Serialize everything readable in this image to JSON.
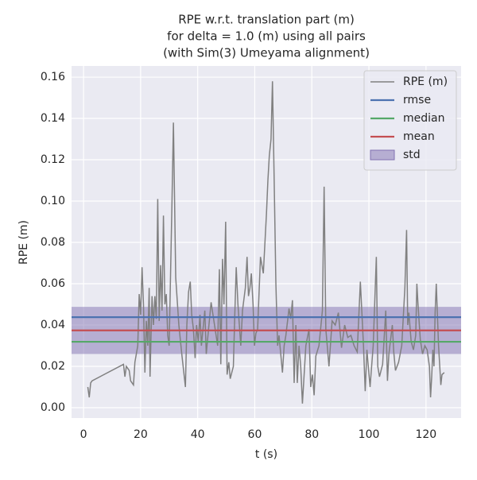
{
  "chart_data": {
    "type": "line",
    "title": [
      "RPE w.r.t. translation part (m)",
      "for delta = 1.0 (m) using all pairs",
      "(with Sim(3) Umeyama alignment)"
    ],
    "xlabel": "t (s)",
    "ylabel": "RPE (m)",
    "xlim": [
      -4.2,
      132.3
    ],
    "ylim": [
      -0.005,
      0.1654
    ],
    "xticks": [
      0,
      20,
      40,
      60,
      80,
      100,
      120
    ],
    "yticks": [
      {
        "value": 0,
        "label": "0.00"
      },
      {
        "value": 0.02,
        "label": "0.02"
      },
      {
        "value": 0.04,
        "label": "0.04"
      },
      {
        "value": 0.06,
        "label": "0.06"
      },
      {
        "value": 0.08,
        "label": "0.08"
      },
      {
        "value": 0.1,
        "label": "0.10"
      },
      {
        "value": 0.12,
        "label": "0.12"
      },
      {
        "value": 0.14,
        "label": "0.14"
      },
      {
        "value": 0.16,
        "label": "0.16"
      }
    ],
    "grid": true,
    "legend": "upper right",
    "series": [
      {
        "name": "RPE (m)",
        "color": "#808080",
        "x": [
          1.5,
          2,
          2.5,
          3,
          14,
          14.5,
          15,
          16,
          16.5,
          17.5,
          18,
          19,
          19.5,
          20,
          20.5,
          21,
          21.5,
          22,
          22.5,
          23,
          23.3,
          24,
          24.5,
          25,
          25.5,
          26,
          26.5,
          27,
          27.5,
          28,
          28.5,
          29,
          29.5,
          30,
          30.5,
          31,
          31.5,
          32.3,
          33.4,
          34.5,
          35.7,
          36.2,
          36.8,
          37.4,
          37.9,
          38.5,
          39.1,
          39.6,
          40.2,
          40.8,
          41.3,
          42.5,
          43,
          43.6,
          44.7,
          45.9,
          47,
          47.6,
          48.1,
          48.7,
          49.2,
          49.8,
          50.3,
          50.9,
          51.4,
          52.5,
          53,
          53.5,
          54.1,
          54.6,
          55.1,
          55.7,
          56.7,
          57.3,
          57.8,
          58.3,
          58.8,
          59.4,
          59.9,
          60.4,
          61,
          62,
          62.5,
          63,
          64.1,
          64.6,
          65.1,
          65.7,
          66.2,
          66.8,
          67.4,
          68,
          68.5,
          69.7,
          70.3,
          70.9,
          72,
          72.6,
          73.2,
          73.8,
          74.4,
          74.9,
          75.5,
          76.1,
          76.7,
          77.9,
          79,
          79.6,
          80.2,
          80.8,
          81.4,
          82.5,
          83.7,
          84.3,
          84.9,
          85.4,
          86,
          87.1,
          88.2,
          89.3,
          90.4,
          91.5,
          92.6,
          93.7,
          94.8,
          95.9,
          97,
          98.1,
          98.7,
          99.3,
          100.4,
          101.5,
          102.6,
          103.1,
          103.7,
          104.8,
          105.9,
          106.5,
          107,
          108.2,
          108.7,
          109.3,
          110.4,
          111.5,
          112.6,
          113.2,
          113.6,
          114,
          114.8,
          115.6,
          116.4,
          116.8,
          117.2,
          118,
          118.8,
          119.6,
          120.4,
          121.2,
          121.6,
          122,
          122.4,
          122.8,
          123.2,
          123.6,
          124,
          124.4,
          125.2,
          125.6,
          126.4
        ],
        "values": [
          0.01,
          0.005,
          0.012,
          0.013,
          0.021,
          0.015,
          0.02,
          0.018,
          0.013,
          0.011,
          0.022,
          0.03,
          0.055,
          0.045,
          0.068,
          0.05,
          0.017,
          0.042,
          0.03,
          0.058,
          0.015,
          0.054,
          0.04,
          0.054,
          0.043,
          0.101,
          0.042,
          0.069,
          0.047,
          0.093,
          0.05,
          0.055,
          0.035,
          0.03,
          0.065,
          0.1,
          0.138,
          0.063,
          0.04,
          0.025,
          0.01,
          0.04,
          0.056,
          0.061,
          0.045,
          0.038,
          0.024,
          0.04,
          0.032,
          0.045,
          0.03,
          0.047,
          0.026,
          0.035,
          0.051,
          0.04,
          0.03,
          0.067,
          0.021,
          0.072,
          0.05,
          0.09,
          0.016,
          0.022,
          0.014,
          0.02,
          0.045,
          0.068,
          0.05,
          0.04,
          0.03,
          0.047,
          0.058,
          0.073,
          0.054,
          0.058,
          0.065,
          0.05,
          0.03,
          0.036,
          0.038,
          0.073,
          0.069,
          0.065,
          0.094,
          0.11,
          0.122,
          0.13,
          0.158,
          0.11,
          0.06,
          0.03,
          0.035,
          0.017,
          0.03,
          0.035,
          0.048,
          0.043,
          0.052,
          0.012,
          0.04,
          0.012,
          0.03,
          0.02,
          0.002,
          0.03,
          0.038,
          0.01,
          0.016,
          0.006,
          0.025,
          0.03,
          0.047,
          0.107,
          0.038,
          0.03,
          0.02,
          0.042,
          0.04,
          0.046,
          0.029,
          0.04,
          0.034,
          0.035,
          0.03,
          0.027,
          0.061,
          0.03,
          0.008,
          0.028,
          0.01,
          0.03,
          0.073,
          0.02,
          0.015,
          0.021,
          0.047,
          0.013,
          0.026,
          0.04,
          0.027,
          0.018,
          0.022,
          0.03,
          0.058,
          0.086,
          0.04,
          0.046,
          0.032,
          0.028,
          0.035,
          0.06,
          0.05,
          0.033,
          0.026,
          0.03,
          0.028,
          0.02,
          0.005,
          0.015,
          0.028,
          0.02,
          0.046,
          0.06,
          0.045,
          0.03,
          0.011,
          0.016,
          0.017
        ]
      }
    ],
    "hlines": [
      {
        "name": "rmse",
        "color": "#4c72b0",
        "value": 0.0438
      },
      {
        "name": "median",
        "color": "#55a868",
        "value": 0.0319
      },
      {
        "name": "mean",
        "color": "#c44e52",
        "value": 0.0374
      }
    ],
    "band": {
      "name": "std",
      "color": "#8172b2",
      "value": 0.0114
    }
  }
}
